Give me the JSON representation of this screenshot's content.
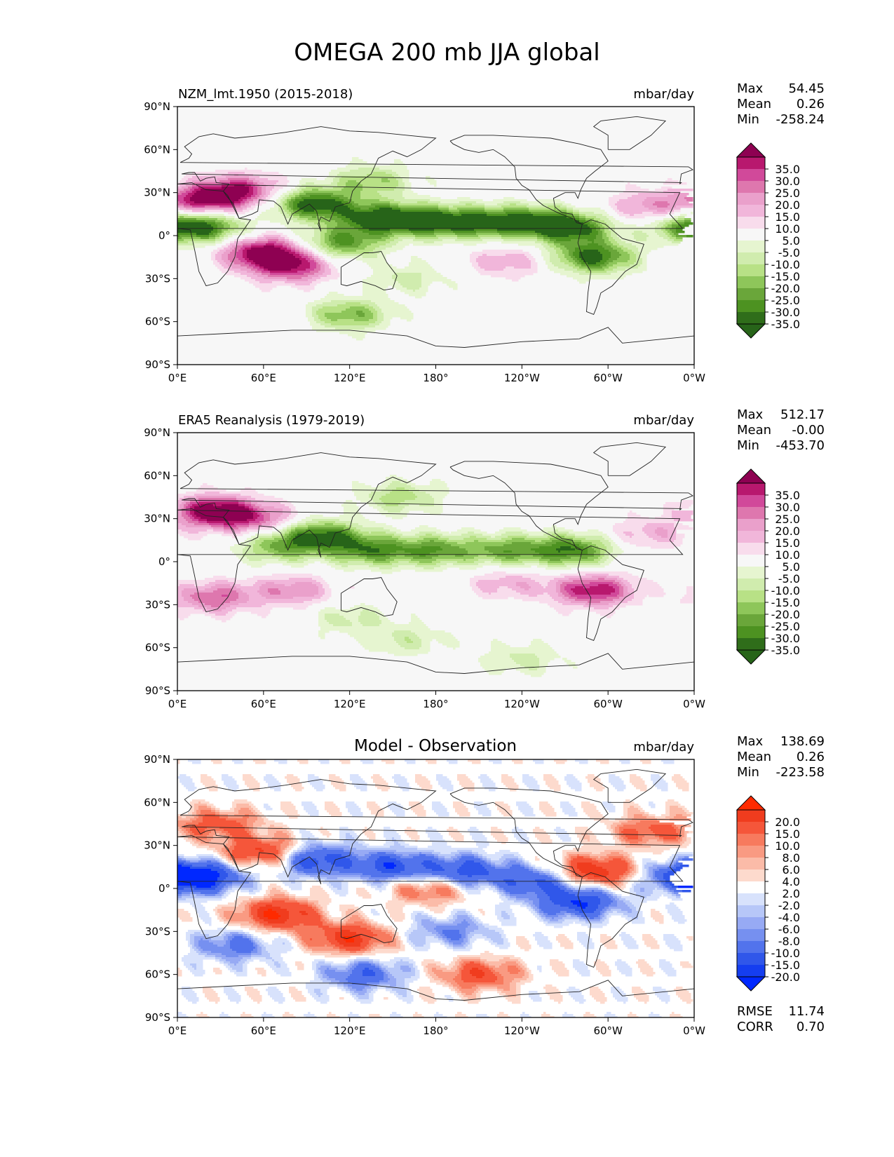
{
  "title": "OMEGA 200 mb JJA global",
  "chart_data": [
    {
      "type": "heatmap",
      "name": "model",
      "title": "NZM_lmt.1950 (2015-2018)",
      "units": "mbar/day",
      "stats": {
        "max_label": "Max",
        "max": "54.45",
        "mean_label": "Mean",
        "mean": "0.26",
        "min_label": "Min",
        "min": "-258.24"
      },
      "colorbar": {
        "labels": [
          "35.0",
          "30.0",
          "25.0",
          "20.0",
          "15.0",
          "10.0",
          "5.0",
          "-5.0",
          "-10.0",
          "-15.0",
          "-20.0",
          "-25.0",
          "-30.0",
          "-35.0"
        ],
        "colors": [
          "#8e0152",
          "#b8186e",
          "#d1499a",
          "#de77ae",
          "#eaa0cb",
          "#f1b6da",
          "#f8dcec",
          "#f7f7f7",
          "#e6f5d0",
          "#d0ecae",
          "#b8e186",
          "#8ec65a",
          "#6aa63a",
          "#4d9221",
          "#2f6d1a",
          "#276419"
        ]
      },
      "xticks": [
        "0°E",
        "60°E",
        "120°E",
        "180°",
        "120°W",
        "60°W",
        "0°W"
      ],
      "yticks": [
        "90°N",
        "60°N",
        "30°N",
        "0°",
        "30°S",
        "60°S",
        "90°S"
      ],
      "features": [
        {
          "lon": 95,
          "lat": 22,
          "v": -40
        },
        {
          "lon": 140,
          "lat": 12,
          "v": -38
        },
        {
          "lon": 175,
          "lat": 10,
          "v": -34
        },
        {
          "lon": 210,
          "lat": 9,
          "v": -30
        },
        {
          "lon": 245,
          "lat": 10,
          "v": -30
        },
        {
          "lon": 275,
          "lat": 5,
          "v": -36
        },
        {
          "lon": 290,
          "lat": -15,
          "v": -38
        },
        {
          "lon": 20,
          "lat": 6,
          "v": -30
        },
        {
          "lon": 355,
          "lat": 6,
          "v": -25
        },
        {
          "lon": 115,
          "lat": -5,
          "v": -30
        },
        {
          "lon": 60,
          "lat": -12,
          "v": 40
        },
        {
          "lon": 20,
          "lat": 25,
          "v": 35
        },
        {
          "lon": 45,
          "lat": 32,
          "v": 28
        },
        {
          "lon": 80,
          "lat": -22,
          "v": 30
        },
        {
          "lon": 120,
          "lat": -55,
          "v": -25
        },
        {
          "lon": 160,
          "lat": -30,
          "v": -12
        },
        {
          "lon": 135,
          "lat": 38,
          "v": -20
        },
        {
          "lon": 330,
          "lat": 20,
          "v": 20
        },
        {
          "lon": 230,
          "lat": -18,
          "v": 15
        }
      ]
    },
    {
      "type": "heatmap",
      "name": "obs",
      "title": "ERA5 Reanalysis (1979-2019)",
      "units": "mbar/day",
      "stats": {
        "max_label": "Max",
        "max": "512.17",
        "mean_label": "Mean",
        "mean": "-0.00",
        "min_label": "Min",
        "min": "-453.70"
      },
      "colorbar": {
        "labels": [
          "35.0",
          "30.0",
          "25.0",
          "20.0",
          "15.0",
          "10.0",
          "5.0",
          "-5.0",
          "-10.0",
          "-15.0",
          "-20.0",
          "-25.0",
          "-30.0",
          "-35.0"
        ],
        "colors": [
          "#8e0152",
          "#b8186e",
          "#d1499a",
          "#de77ae",
          "#eaa0cb",
          "#f1b6da",
          "#f8dcec",
          "#f7f7f7",
          "#e6f5d0",
          "#d0ecae",
          "#b8e186",
          "#8ec65a",
          "#6aa63a",
          "#4d9221",
          "#2f6d1a",
          "#276419"
        ]
      },
      "xticks": [
        "0°E",
        "60°E",
        "120°E",
        "180°",
        "120°W",
        "60°W",
        "0°W"
      ],
      "yticks": [
        "90°N",
        "60°N",
        "30°N",
        "0°",
        "30°S",
        "60°S",
        "90°S"
      ],
      "features": [
        {
          "lon": 100,
          "lat": 18,
          "v": -35
        },
        {
          "lon": 135,
          "lat": 8,
          "v": -30
        },
        {
          "lon": 180,
          "lat": 8,
          "v": -28
        },
        {
          "lon": 230,
          "lat": 8,
          "v": -26
        },
        {
          "lon": 275,
          "lat": 8,
          "v": -34
        },
        {
          "lon": 70,
          "lat": 10,
          "v": -22
        },
        {
          "lon": 25,
          "lat": 35,
          "v": 40
        },
        {
          "lon": 55,
          "lat": 30,
          "v": 22
        },
        {
          "lon": 290,
          "lat": -20,
          "v": 35
        },
        {
          "lon": 25,
          "lat": -25,
          "v": 25
        },
        {
          "lon": 80,
          "lat": -20,
          "v": 20
        },
        {
          "lon": 230,
          "lat": -15,
          "v": 14
        },
        {
          "lon": 120,
          "lat": -40,
          "v": -12
        },
        {
          "lon": 160,
          "lat": -55,
          "v": -12
        },
        {
          "lon": 240,
          "lat": -68,
          "v": -12
        },
        {
          "lon": 330,
          "lat": 20,
          "v": 14
        },
        {
          "lon": 155,
          "lat": 45,
          "v": -18
        }
      ]
    },
    {
      "type": "heatmap",
      "name": "diff",
      "title": "Model - Observation",
      "units": "mbar/day",
      "stats": {
        "max_label": "Max",
        "max": "138.69",
        "mean_label": "Mean",
        "mean": "0.26",
        "min_label": "Min",
        "min": "-223.58"
      },
      "extra_stats": {
        "rmse_label": "RMSE",
        "rmse": "11.74",
        "corr_label": "CORR",
        "corr": "0.70"
      },
      "colorbar": {
        "labels": [
          "20.0",
          "15.0",
          "10.0",
          "8.0",
          "6.0",
          "4.0",
          "2.0",
          "-2.0",
          "-4.0",
          "-6.0",
          "-8.0",
          "-10.0",
          "-15.0",
          "-20.0"
        ],
        "colors": [
          "#ff2a00",
          "#f03c1e",
          "#f5563a",
          "#f77a5e",
          "#f99a82",
          "#fbbba8",
          "#fddacd",
          "#ffffff",
          "#d8e2fc",
          "#b7c7f8",
          "#97aaf4",
          "#7690f0",
          "#5273ec",
          "#3057ea",
          "#153ef0",
          "#0028ff"
        ]
      },
      "xticks": [
        "0°E",
        "60°E",
        "120°E",
        "180°",
        "120°W",
        "60°W",
        "0°W"
      ],
      "yticks": [
        "90°N",
        "60°N",
        "30°N",
        "0°",
        "30°S",
        "60°S",
        "90°S"
      ],
      "features": [
        {
          "lon": 95,
          "lat": 20,
          "v": -20
        },
        {
          "lon": 150,
          "lat": 15,
          "v": -18
        },
        {
          "lon": 200,
          "lat": 12,
          "v": -18
        },
        {
          "lon": 250,
          "lat": 5,
          "v": -16
        },
        {
          "lon": 280,
          "lat": -10,
          "v": -20
        },
        {
          "lon": 20,
          "lat": 8,
          "v": -18
        },
        {
          "lon": 355,
          "lat": 8,
          "v": -20
        },
        {
          "lon": 70,
          "lat": -18,
          "v": 20
        },
        {
          "lon": 60,
          "lat": 25,
          "v": 18
        },
        {
          "lon": 290,
          "lat": 12,
          "v": 20
        },
        {
          "lon": 120,
          "lat": -35,
          "v": 18
        },
        {
          "lon": 210,
          "lat": -60,
          "v": 14
        },
        {
          "lon": 130,
          "lat": -60,
          "v": -14
        },
        {
          "lon": 190,
          "lat": -30,
          "v": -10
        },
        {
          "lon": 40,
          "lat": -40,
          "v": -12
        },
        {
          "lon": 330,
          "lat": 40,
          "v": 12
        },
        {
          "lon": 30,
          "lat": 45,
          "v": 12
        },
        {
          "lon": 175,
          "lat": 0,
          "v": 12
        }
      ]
    }
  ]
}
